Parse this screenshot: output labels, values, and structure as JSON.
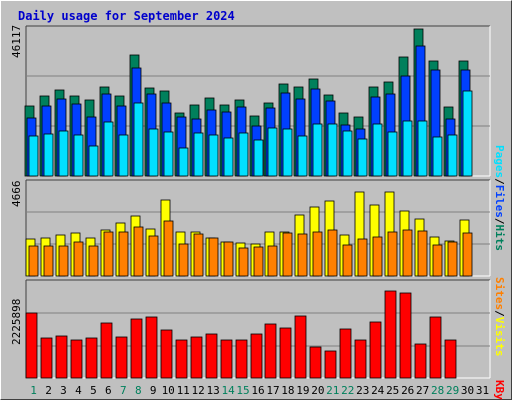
{
  "title": "Daily usage for September 2024",
  "colors": {
    "title": "#0000cc",
    "hits": "#00805c",
    "files": "#0040ff",
    "pages": "#00e0ff",
    "visits": "#ffff00",
    "sites": "#ff8000",
    "kbytes": "#ff0000",
    "weekend_tick": "#00805c",
    "weekday_tick": "#000000",
    "plot_bg": "#c0c0c0",
    "grid": "#808080"
  },
  "side_labels": {
    "pages": "Pages",
    "files": "Files",
    "hits": "Hits",
    "sites": "Sites",
    "visits": "Visits",
    "kbytes": "KBytes",
    "sep": "/"
  },
  "chart_data": [
    {
      "type": "bar",
      "name": "hits-files-pages",
      "ylabel": "46117",
      "ylim": [
        0,
        46117
      ],
      "grid": true,
      "categories": [
        "1",
        "2",
        "3",
        "4",
        "5",
        "6",
        "7",
        "8",
        "9",
        "10",
        "11",
        "12",
        "13",
        "14",
        "15",
        "16",
        "17",
        "18",
        "19",
        "20",
        "21",
        "22",
        "23",
        "24",
        "25",
        "26",
        "27",
        "28",
        "29",
        "30",
        "31"
      ],
      "weekend_days": [
        "1",
        "7",
        "8",
        "14",
        "15",
        "21",
        "22",
        "28",
        "29"
      ],
      "series": [
        {
          "name": "Hits",
          "values": [
            21800,
            24800,
            26800,
            24900,
            23800,
            27800,
            24900,
            37600,
            27500,
            26500,
            19500,
            22200,
            24300,
            22100,
            23800,
            18600,
            22700,
            28600,
            27600,
            30300,
            25200,
            19700,
            18300,
            27800,
            29300,
            37100,
            45900,
            35800,
            21400,
            35900,
            0
          ]
        },
        {
          "name": "Files",
          "values": [
            18200,
            21800,
            24000,
            22400,
            18400,
            25500,
            21800,
            33600,
            25400,
            22700,
            18400,
            17700,
            20700,
            19800,
            21400,
            15500,
            21200,
            25900,
            24100,
            27100,
            23300,
            16000,
            14600,
            24500,
            25400,
            31300,
            40500,
            33000,
            17800,
            33100,
            0
          ]
        },
        {
          "name": "Pages",
          "values": [
            12600,
            13100,
            13900,
            12800,
            9300,
            16700,
            12700,
            22800,
            14600,
            13800,
            8700,
            13300,
            12800,
            11800,
            13400,
            11200,
            14900,
            14800,
            12500,
            16300,
            16300,
            14100,
            11600,
            16300,
            13800,
            17000,
            17100,
            12000,
            12800,
            26400,
            0
          ]
        }
      ]
    },
    {
      "type": "bar",
      "name": "visits-sites",
      "ylabel": "4666",
      "ylim": [
        0,
        4666
      ],
      "grid": true,
      "categories": [
        "1",
        "2",
        "3",
        "4",
        "5",
        "6",
        "7",
        "8",
        "9",
        "10",
        "11",
        "12",
        "13",
        "14",
        "15",
        "16",
        "17",
        "18",
        "19",
        "20",
        "21",
        "22",
        "23",
        "24",
        "25",
        "26",
        "27",
        "28",
        "29",
        "30",
        "31"
      ],
      "series": [
        {
          "name": "Visits",
          "values": [
            1820,
            1890,
            2050,
            2150,
            1880,
            2260,
            2620,
            3000,
            2340,
            3790,
            2170,
            2200,
            1910,
            1700,
            1650,
            1610,
            2180,
            2170,
            3050,
            3430,
            3720,
            2020,
            4160,
            3520,
            4160,
            3210,
            2840,
            1940,
            1740,
            2800,
            0
          ]
        },
        {
          "name": "Sites",
          "values": [
            1470,
            1470,
            1490,
            1690,
            1490,
            2180,
            2180,
            2410,
            2000,
            2750,
            1580,
            2090,
            1880,
            1690,
            1400,
            1440,
            1510,
            2140,
            2080,
            2160,
            2270,
            1540,
            1860,
            1950,
            2160,
            2270,
            2240,
            1550,
            1670,
            2110,
            0
          ]
        }
      ]
    },
    {
      "type": "bar",
      "name": "kbytes",
      "ylabel": "2225898",
      "ylim": [
        0,
        2225898
      ],
      "grid": true,
      "categories": [
        "1",
        "2",
        "3",
        "4",
        "5",
        "6",
        "7",
        "8",
        "9",
        "10",
        "11",
        "12",
        "13",
        "14",
        "15",
        "16",
        "17",
        "18",
        "19",
        "20",
        "21",
        "22",
        "23",
        "24",
        "25",
        "26",
        "27",
        "28",
        "29",
        "30",
        "31"
      ],
      "series": [
        {
          "name": "KBytes",
          "values": [
            1500000,
            920000,
            970000,
            880000,
            930000,
            1280000,
            950000,
            1360000,
            1410000,
            1120000,
            880000,
            940000,
            1030000,
            880000,
            870000,
            1020000,
            1250000,
            1170000,
            1440000,
            730000,
            630000,
            1140000,
            890000,
            1300000,
            2020000,
            1960000,
            780000,
            1420000,
            870000,
            0,
            0
          ]
        }
      ]
    }
  ]
}
